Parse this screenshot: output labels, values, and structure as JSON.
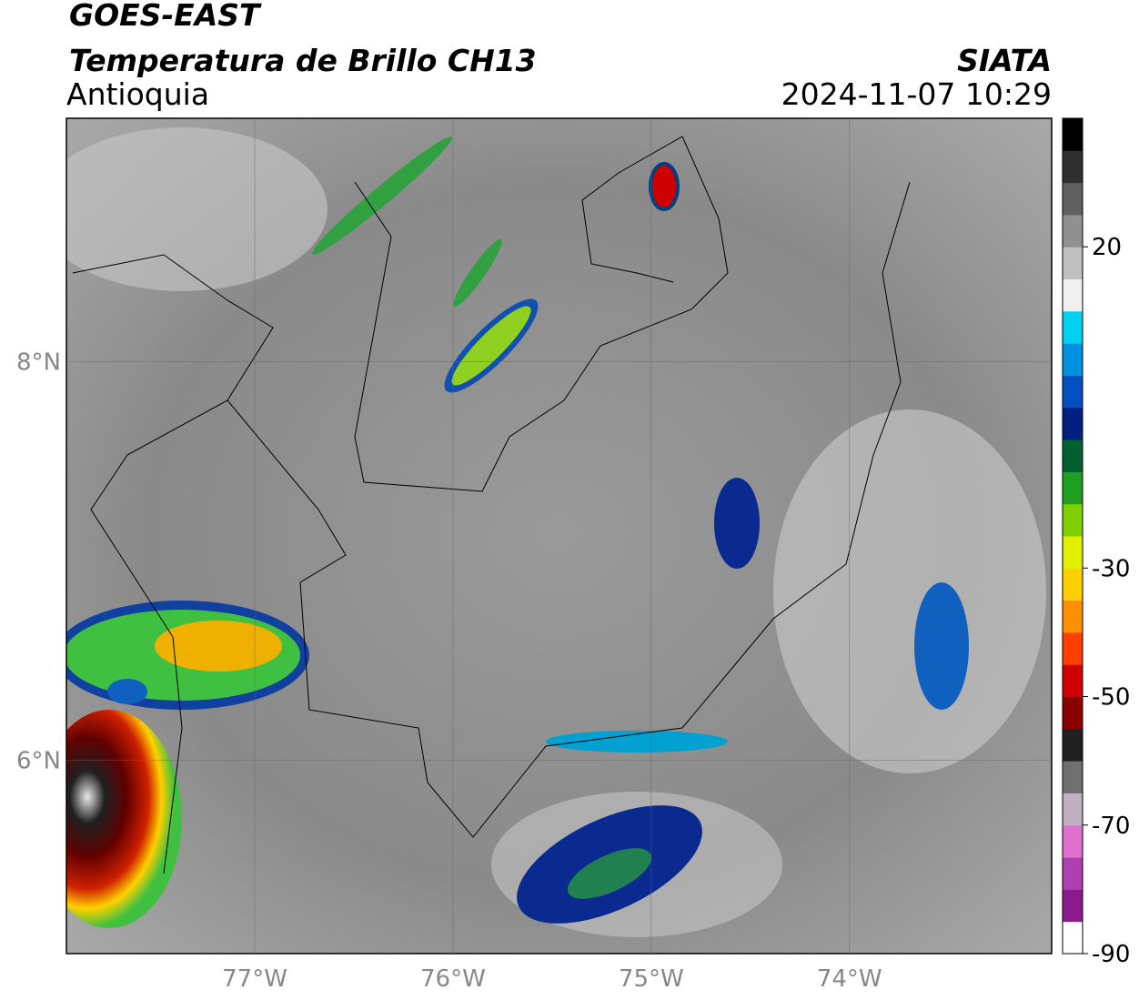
{
  "chart_data": {
    "type": "map",
    "title": "GOES-EAST",
    "subtitle": "Temperatura de Brillo CH13",
    "region": "Antioquia",
    "source": "SIATA",
    "timestamp": "2024-11-07 10:29",
    "xlim": [
      -77.95,
      -72.98
    ],
    "ylim": [
      5.03,
      9.22
    ],
    "xticks": [
      {
        "value": -77,
        "label": "77°W"
      },
      {
        "value": -76,
        "label": "76°W"
      },
      {
        "value": -75,
        "label": "75°W"
      },
      {
        "value": -74,
        "label": "74°W"
      }
    ],
    "yticks": [
      {
        "value": 8,
        "label": "8°N"
      },
      {
        "value": 6,
        "label": "6°N"
      }
    ],
    "grid": true,
    "colorbar": {
      "lim": [
        -90,
        40
      ],
      "ticks": [
        20,
        -30,
        -50,
        -70,
        -90
      ],
      "colors": [
        "#ffffff",
        "#8b1a8b",
        "#b040b0",
        "#e070d0",
        "#c0b0c0",
        "#707070",
        "#202020",
        "#8b0000",
        "#d00000",
        "#ff4000",
        "#ff9000",
        "#ffd000",
        "#e0f000",
        "#80d000",
        "#20a020",
        "#006030",
        "#002080",
        "#0050c0",
        "#0090e0",
        "#00d0f0",
        "#f0f0f0",
        "#c0c0c0",
        "#909090",
        "#606060",
        "#303030",
        "#000000"
      ]
    }
  }
}
